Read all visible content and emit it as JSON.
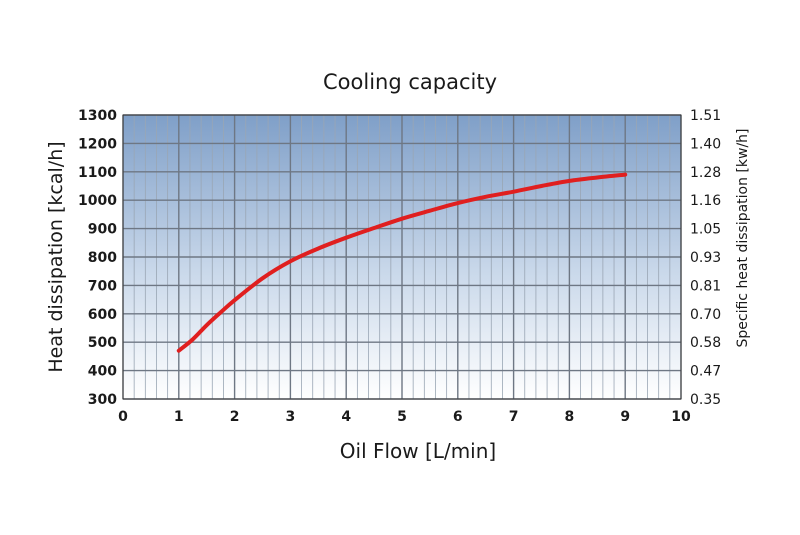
{
  "chart_data": {
    "type": "line",
    "title": "Cooling capacity",
    "xlabel": "Oil Flow [L/min]",
    "ylabel": "Heat dissipation [kcal/h]",
    "y2label": "Specific heat dissipation [kw/h]",
    "xlim": [
      0,
      10
    ],
    "ylim": [
      300,
      1300
    ],
    "xticks": [
      "0",
      "1",
      "2",
      "3",
      "4",
      "5",
      "6",
      "7",
      "8",
      "9",
      "10"
    ],
    "yticks": [
      "300",
      "400",
      "500",
      "600",
      "700",
      "800",
      "900",
      "1000",
      "1100",
      "1200",
      "1300"
    ],
    "y2ticks": [
      "0.35",
      "0.47",
      "0.58",
      "0.70",
      "0.81",
      "0.93",
      "1.05",
      "1.16",
      "1.28",
      "1.40",
      "1.51"
    ],
    "grid": true,
    "series": [
      {
        "color": "#e01f1f",
        "x": [
          1.0,
          1.25,
          1.5,
          1.75,
          2.0,
          2.5,
          3.0,
          3.5,
          4.0,
          4.5,
          5.0,
          5.5,
          6.0,
          6.5,
          7.0,
          7.5,
          8.0,
          8.5,
          9.0
        ],
        "y": [
          470,
          510,
          560,
          605,
          648,
          725,
          785,
          830,
          868,
          902,
          935,
          963,
          990,
          1012,
          1030,
          1050,
          1068,
          1080,
          1090
        ]
      }
    ]
  }
}
